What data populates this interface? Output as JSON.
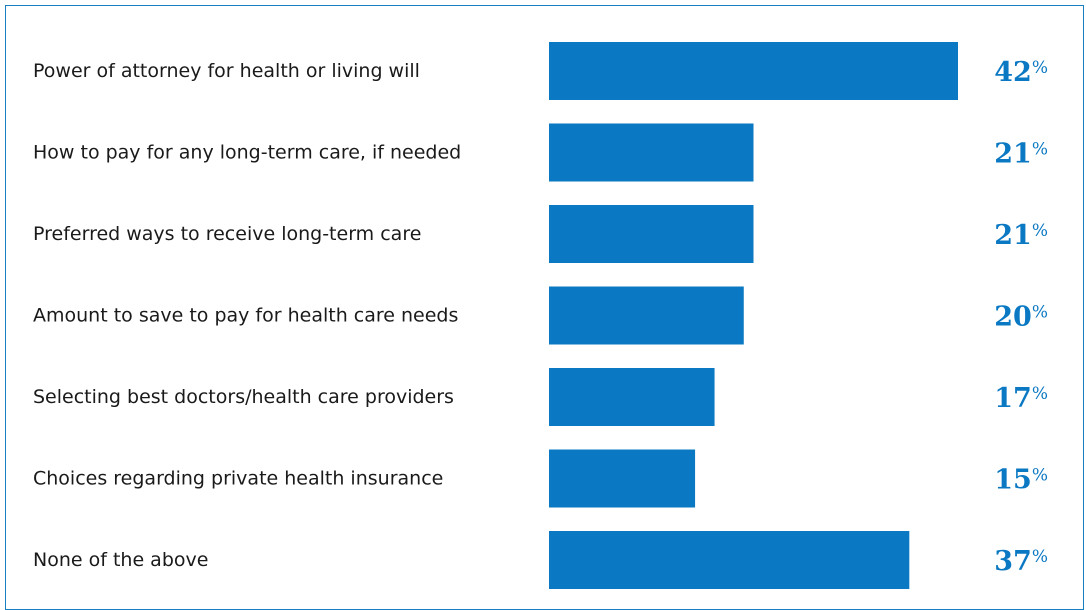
{
  "chart_data": {
    "type": "bar",
    "orientation": "horizontal",
    "categories": [
      "Power of attorney for health or living will",
      "How to pay for any long-term care, if needed",
      "Preferred ways to receive long-term care",
      "Amount to save to pay for health care needs",
      "Selecting best doctors/health care providers",
      "Choices regarding private health insurance",
      "None of the above"
    ],
    "values": [
      42,
      21,
      21,
      20,
      17,
      15,
      37
    ],
    "value_suffix": "%",
    "bar_color": "#0a78c2",
    "label_color": "#0a78c2",
    "xlim": [
      0,
      42
    ],
    "grid": false,
    "legend": "none"
  }
}
